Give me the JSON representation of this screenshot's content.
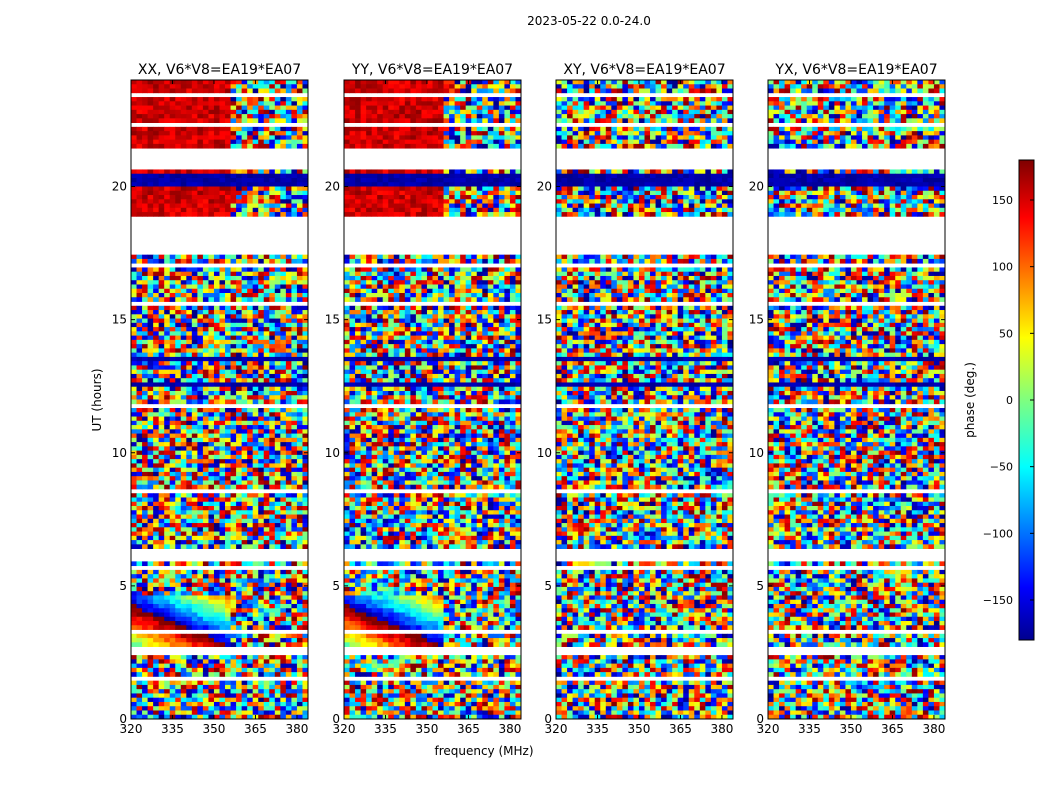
{
  "chart_data": {
    "type": "heatmap",
    "suptitle": "2023-05-22 0.0-24.0",
    "xlabel": "frequency (MHz)",
    "ylabel": "UT (hours)",
    "xlim": [
      320,
      384
    ],
    "ylim": [
      0,
      24
    ],
    "xticks": [
      320,
      335,
      350,
      365,
      380
    ],
    "yticks": [
      0,
      5,
      10,
      15,
      20
    ],
    "panels": [
      {
        "title": "XX, V6*V8=EA19*EA07",
        "correlation": "XX",
        "coherent_phase_deg": 150
      },
      {
        "title": "YY, V6*V8=EA19*EA07",
        "correlation": "YY",
        "coherent_phase_deg": 150
      },
      {
        "title": "XY, V6*V8=EA19*EA07",
        "correlation": "XY",
        "coherent_phase_deg": null
      },
      {
        "title": "YX, V6*V8=EA19*EA07",
        "correlation": "YX",
        "coherent_phase_deg": null
      }
    ],
    "colorbar": {
      "label": "phase (deg.)",
      "range": [
        -180,
        180
      ],
      "ticks": [
        150,
        100,
        50,
        0,
        -50,
        -100,
        -150
      ],
      "tick_labels": [
        "150",
        "100",
        "50",
        "0",
        "−50",
        "−100",
        "−150"
      ],
      "colormap": "jet"
    },
    "flagged_ut_ranges": [
      [
        23.4,
        23.55
      ],
      [
        22.3,
        22.38
      ],
      [
        21.3,
        21.4
      ],
      [
        20.65,
        21.25
      ],
      [
        19.0,
        19.1
      ],
      [
        17.5,
        18.8
      ],
      [
        16.95,
        17.05
      ],
      [
        15.6,
        15.68
      ],
      [
        14.65,
        14.72
      ],
      [
        12.3,
        12.38
      ],
      [
        11.7,
        11.8
      ],
      [
        10.35,
        10.42
      ],
      [
        8.5,
        8.6
      ],
      [
        6.3,
        6.35
      ],
      [
        6.0,
        6.3
      ],
      [
        5.6,
        5.7
      ],
      [
        3.2,
        3.3
      ],
      [
        2.45,
        2.65
      ],
      [
        1.5,
        1.6
      ]
    ],
    "dense_ut_bands": [
      [
        20.0,
        20.5
      ],
      [
        12.5,
        12.6
      ],
      [
        13.5,
        13.6
      ]
    ]
  }
}
